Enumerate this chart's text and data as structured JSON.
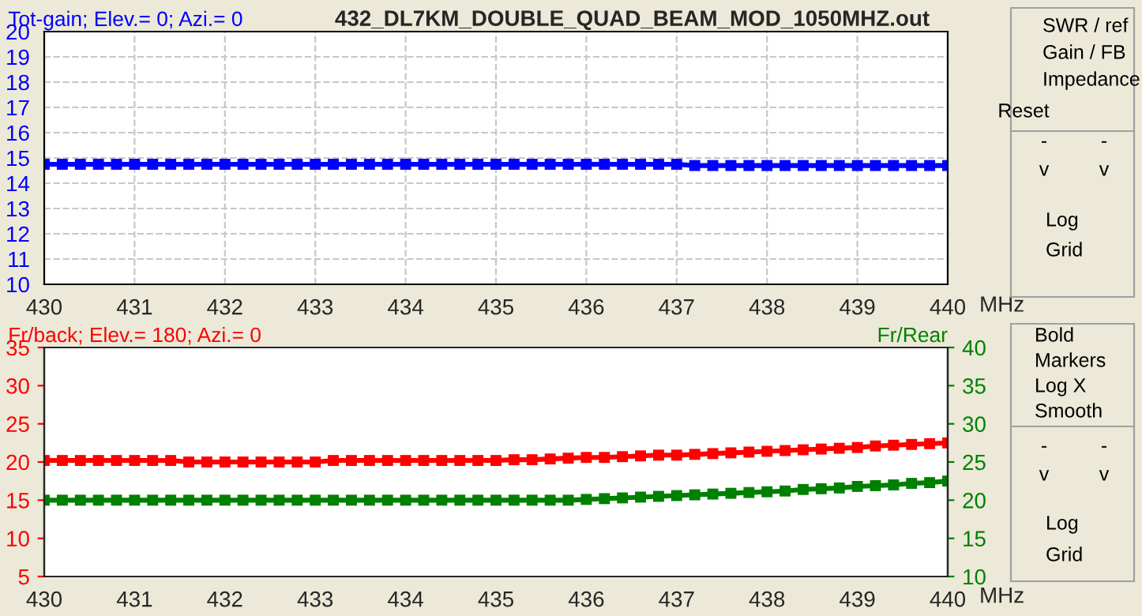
{
  "chart_data": [
    {
      "type": "line",
      "title": "432_DL7KM_DOUBLE_QUAD_BEAM_MOD_1050MHZ.out",
      "ylabel": "Tot-gain; Elev.= 0; Azi.= 0",
      "xlabel": "MHz",
      "x": [
        430,
        430.2,
        430.4,
        430.6,
        430.8,
        431,
        431.2,
        431.4,
        431.6,
        431.8,
        432,
        432.2,
        432.4,
        432.6,
        432.8,
        433,
        433.2,
        433.4,
        433.6,
        433.8,
        434,
        434.2,
        434.4,
        434.6,
        434.8,
        435,
        435.2,
        435.4,
        435.6,
        435.8,
        436,
        436.2,
        436.4,
        436.6,
        436.8,
        437,
        437.2,
        437.4,
        437.6,
        437.8,
        438,
        438.2,
        438.4,
        438.6,
        438.8,
        439,
        439.2,
        439.4,
        439.6,
        439.8,
        440
      ],
      "series": [
        {
          "color": "#0000ff",
          "values": [
            14.75,
            14.75,
            14.75,
            14.75,
            14.75,
            14.75,
            14.75,
            14.75,
            14.75,
            14.75,
            14.75,
            14.75,
            14.75,
            14.75,
            14.75,
            14.75,
            14.75,
            14.75,
            14.75,
            14.75,
            14.75,
            14.75,
            14.75,
            14.75,
            14.75,
            14.75,
            14.75,
            14.75,
            14.75,
            14.75,
            14.75,
            14.75,
            14.75,
            14.75,
            14.75,
            14.75,
            14.7,
            14.7,
            14.7,
            14.7,
            14.7,
            14.7,
            14.7,
            14.7,
            14.7,
            14.7,
            14.7,
            14.7,
            14.7,
            14.7,
            14.7
          ]
        }
      ],
      "xlim": [
        430,
        440
      ],
      "xticks": [
        430,
        431,
        432,
        433,
        434,
        435,
        436,
        437,
        438,
        439,
        440
      ],
      "ylim": [
        10,
        20
      ],
      "yticks": [
        10,
        11,
        12,
        13,
        14,
        15,
        16,
        17,
        18,
        19,
        20
      ],
      "grid": true,
      "marker": "square",
      "line_style": "solid"
    },
    {
      "type": "line",
      "ylabel": "Fr/back; Elev.= 180; Azi.= 0",
      "y2label": "Fr/Rear",
      "xlabel": "MHz",
      "x": [
        430,
        430.2,
        430.4,
        430.6,
        430.8,
        431,
        431.2,
        431.4,
        431.6,
        431.8,
        432,
        432.2,
        432.4,
        432.6,
        432.8,
        433,
        433.2,
        433.4,
        433.6,
        433.8,
        434,
        434.2,
        434.4,
        434.6,
        434.8,
        435,
        435.2,
        435.4,
        435.6,
        435.8,
        436,
        436.2,
        436.4,
        436.6,
        436.8,
        437,
        437.2,
        437.4,
        437.6,
        437.8,
        438,
        438.2,
        438.4,
        438.6,
        438.8,
        439,
        439.2,
        439.4,
        439.6,
        439.8,
        440
      ],
      "series": [
        {
          "color": "#ff0000",
          "values": [
            20.2,
            20.2,
            20.2,
            20.2,
            20.2,
            20.2,
            20.2,
            20.2,
            20.0,
            20.0,
            20.0,
            20.0,
            20.0,
            20.0,
            20.0,
            20.0,
            20.2,
            20.2,
            20.2,
            20.2,
            20.2,
            20.2,
            20.2,
            20.2,
            20.2,
            20.2,
            20.3,
            20.3,
            20.4,
            20.5,
            20.6,
            20.6,
            20.7,
            20.8,
            20.9,
            20.9,
            21.0,
            21.1,
            21.2,
            21.3,
            21.4,
            21.5,
            21.6,
            21.7,
            21.8,
            21.9,
            22.1,
            22.2,
            22.3,
            22.4,
            22.5
          ]
        },
        {
          "color": "#008000",
          "axis": "y2",
          "values": [
            20.0,
            20.0,
            20.0,
            20.0,
            20.0,
            20.0,
            20.0,
            20.0,
            20.0,
            20.0,
            20.0,
            20.0,
            20.0,
            20.0,
            20.0,
            20.0,
            20.0,
            20.0,
            20.0,
            20.0,
            20.0,
            20.0,
            20.0,
            20.0,
            20.0,
            20.0,
            20.0,
            20.0,
            20.0,
            20.0,
            20.1,
            20.2,
            20.3,
            20.4,
            20.5,
            20.6,
            20.7,
            20.8,
            20.9,
            21.0,
            21.1,
            21.2,
            21.4,
            21.5,
            21.6,
            21.8,
            21.9,
            22.0,
            22.2,
            22.3,
            22.5
          ]
        }
      ],
      "xlim": [
        430,
        440
      ],
      "xticks": [
        430,
        431,
        432,
        433,
        434,
        435,
        436,
        437,
        438,
        439,
        440
      ],
      "ylim": [
        5,
        35
      ],
      "yticks": [
        5,
        10,
        15,
        20,
        25,
        30,
        35
      ],
      "y2lim": [
        10,
        40
      ],
      "y2ticks": [
        10,
        15,
        20,
        25,
        30,
        35,
        40
      ],
      "marker": "square",
      "line_style": "solid"
    },
    {
      "type": "other",
      "annotations": [
        "SWR / ref",
        "Gain / FB",
        "Impedance",
        "Reset",
        "-",
        "-",
        "v",
        "v",
        "Log",
        "Grid",
        "Bold",
        "Markers",
        "Log X",
        "Smooth",
        "-",
        "-",
        "v",
        "v",
        "Log",
        "Grid"
      ]
    }
  ]
}
